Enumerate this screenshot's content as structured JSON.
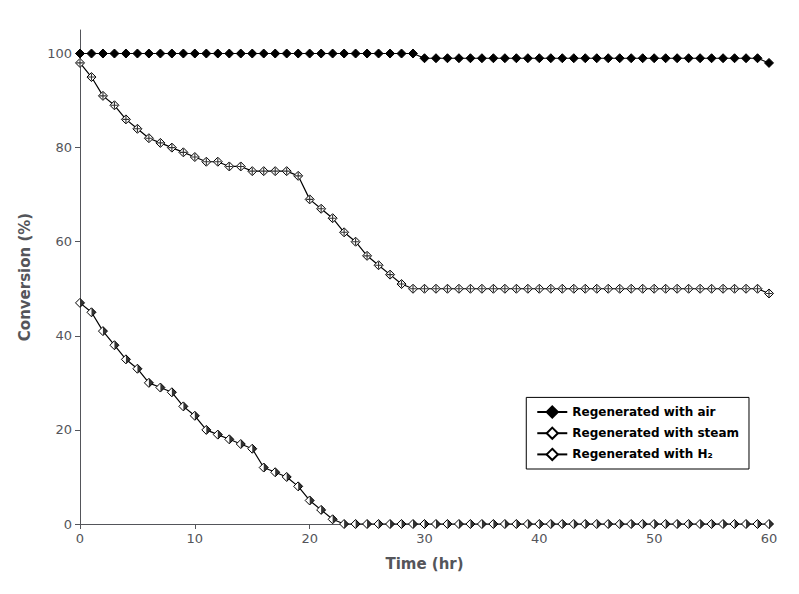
{
  "chart_data": {
    "type": "line",
    "xlabel": "Time (hr)",
    "ylabel": "Conversion (%)",
    "xlim": [
      0,
      60
    ],
    "ylim": [
      0,
      105
    ],
    "xticks": [
      0,
      10,
      20,
      30,
      40,
      50,
      60
    ],
    "yticks": [
      0,
      20,
      40,
      60,
      80,
      100
    ],
    "grid": false,
    "legend": "lower right",
    "x": [
      0,
      1,
      2,
      3,
      4,
      5,
      6,
      7,
      8,
      9,
      10,
      11,
      12,
      13,
      14,
      15,
      16,
      17,
      18,
      19,
      20,
      21,
      22,
      23,
      24,
      25,
      26,
      27,
      28,
      29,
      30,
      31,
      32,
      33,
      34,
      35,
      36,
      37,
      38,
      39,
      40,
      41,
      42,
      43,
      44,
      45,
      46,
      47,
      48,
      49,
      50,
      51,
      52,
      53,
      54,
      55,
      56,
      57,
      58,
      59,
      60
    ],
    "series": [
      {
        "name": "Regenerated with air",
        "color": "#000000",
        "marker": "diamond",
        "values": [
          100,
          100,
          100,
          100,
          100,
          100,
          100,
          100,
          100,
          100,
          100,
          100,
          100,
          100,
          100,
          100,
          100,
          100,
          100,
          100,
          100,
          100,
          100,
          100,
          100,
          100,
          100,
          100,
          100,
          100,
          99,
          99,
          99,
          99,
          99,
          99,
          99,
          99,
          99,
          99,
          99,
          99,
          99,
          99,
          99,
          99,
          99,
          99,
          99,
          99,
          99,
          99,
          99,
          99,
          99,
          99,
          99,
          99,
          99,
          99,
          98
        ]
      },
      {
        "name": "Regenerated with steam",
        "color": "#000000",
        "marker": "diamond_open_plus",
        "values": [
          98,
          95,
          91,
          89,
          86,
          84,
          82,
          81,
          80,
          79,
          78,
          77,
          77,
          76,
          76,
          75,
          75,
          75,
          75,
          74,
          69,
          67,
          65,
          62,
          60,
          57,
          55,
          53,
          51,
          50,
          50,
          50,
          50,
          50,
          50,
          50,
          50,
          50,
          50,
          50,
          50,
          50,
          50,
          50,
          50,
          50,
          50,
          50,
          50,
          50,
          50,
          50,
          50,
          50,
          50,
          50,
          50,
          50,
          50,
          50,
          49
        ]
      },
      {
        "name": "Regenerated with H₂",
        "color": "#000000",
        "marker": "diamond_half",
        "values": [
          47,
          45,
          41,
          38,
          35,
          33,
          30,
          29,
          28,
          25,
          23,
          20,
          19,
          18,
          17,
          16,
          12,
          11,
          10,
          8,
          5,
          3,
          1,
          0,
          0,
          0,
          0,
          0,
          0,
          0,
          0,
          0,
          0,
          0,
          0,
          0,
          0,
          0,
          0,
          0,
          0,
          0,
          0,
          0,
          0,
          0,
          0,
          0,
          0,
          0,
          0,
          0,
          0,
          0,
          0,
          0,
          0,
          0,
          0,
          0,
          0
        ]
      }
    ]
  }
}
